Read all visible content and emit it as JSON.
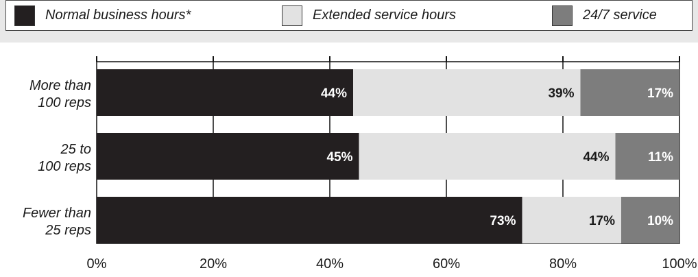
{
  "legend": [
    {
      "label": "Normal business hours*",
      "color": "#231f20"
    },
    {
      "label": "Extended service hours",
      "color": "#e2e2e2"
    },
    {
      "label": "24/7 service",
      "color": "#7d7d7d"
    }
  ],
  "chart_data": {
    "type": "bar",
    "orientation": "horizontal",
    "stacked": true,
    "categories": [
      [
        "More than",
        "100 reps"
      ],
      [
        "25 to",
        "100 reps"
      ],
      [
        "Fewer than",
        "25 reps"
      ]
    ],
    "series": [
      {
        "name": "Normal business hours*",
        "values": [
          44,
          45,
          73
        ],
        "color": "#231f20",
        "label_color": "#ffffff"
      },
      {
        "name": "Extended service hours",
        "values": [
          39,
          44,
          17
        ],
        "color": "#e2e2e2",
        "label_color": "#1a1a1a"
      },
      {
        "name": "24/7 service",
        "values": [
          17,
          11,
          10
        ],
        "color": "#7d7d7d",
        "label_color": "#ffffff"
      }
    ],
    "xlim": [
      0,
      100
    ],
    "xticks": [
      0,
      20,
      40,
      60,
      80,
      100
    ],
    "tick_suffix": "%",
    "value_suffix": "%",
    "grid": true
  }
}
